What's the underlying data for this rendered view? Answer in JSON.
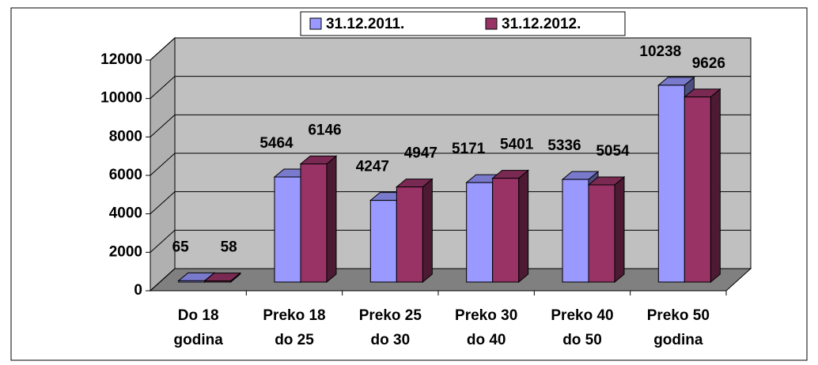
{
  "chart_data": {
    "type": "bar3d",
    "categories": [
      "Do 18\ngodina",
      "Preko 18\ndo 25",
      "Preko 25\ndo 30",
      "Preko 30\ndo 40",
      "Preko 40\ndo 50",
      "Preko 50\ngodina"
    ],
    "series": [
      {
        "name": "31.12.2011.",
        "color": "#9999ff",
        "values": [
          65,
          5464,
          4247,
          5171,
          5336,
          10238
        ]
      },
      {
        "name": "31.12.2012.",
        "color": "#993366",
        "values": [
          58,
          6146,
          4947,
          5401,
          5054,
          9626
        ]
      }
    ],
    "ylim": [
      0,
      12000
    ],
    "yticks": [
      0,
      2000,
      4000,
      6000,
      8000,
      10000,
      12000
    ],
    "grid": true,
    "legend": "top"
  }
}
